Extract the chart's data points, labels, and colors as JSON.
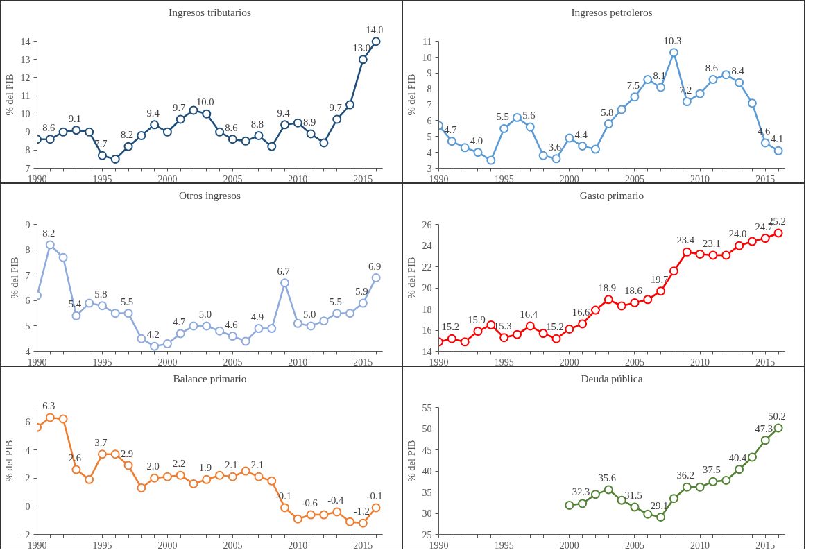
{
  "chart_data": [
    {
      "type": "line",
      "title": "Ingresos tributarios",
      "ylabel": "% del PIB",
      "color": "#1f4e79",
      "marker": "circle",
      "xlim": [
        1990,
        2016.5
      ],
      "xticks": [
        1990,
        {
          "value": 1991,
          "label": null
        },
        {
          "value": 1992,
          "label": null
        },
        {
          "value": 1993,
          "label": null
        },
        {
          "value": 1994,
          "label": null
        },
        1995,
        {
          "value": 1996,
          "label": null
        },
        {
          "value": 1997,
          "label": null
        },
        {
          "value": 1998,
          "label": null
        },
        {
          "value": 1999,
          "label": null
        },
        2000,
        {
          "value": 2001,
          "label": null
        },
        {
          "value": 2002,
          "label": null
        },
        {
          "value": 2003,
          "label": null
        },
        {
          "value": 2004,
          "label": null
        },
        2005,
        {
          "value": 2006,
          "label": null
        },
        {
          "value": 2007,
          "label": null
        },
        {
          "value": 2008,
          "label": null
        },
        {
          "value": 2009,
          "label": null
        },
        2010,
        {
          "value": 2011,
          "label": null
        },
        {
          "value": 2012,
          "label": null
        },
        {
          "value": 2013,
          "label": null
        },
        {
          "value": 2014,
          "label": null
        },
        2015,
        {
          "value": 2016,
          "label": null
        }
      ],
      "ylim": [
        7,
        14
      ],
      "yticks": [
        7,
        8,
        9,
        10,
        11,
        12,
        13,
        14
      ],
      "x": [
        1990,
        1991,
        1992,
        1993,
        1994,
        1995,
        1996,
        1997,
        1998,
        1999,
        2000,
        2001,
        2002,
        2003,
        2004,
        2005,
        2006,
        2007,
        2008,
        2009,
        2010,
        2011,
        2012,
        2013,
        2014,
        2015,
        2016
      ],
      "values": [
        8.6,
        8.6,
        9.0,
        9.1,
        9.0,
        7.7,
        7.5,
        8.2,
        8.8,
        9.4,
        9.0,
        9.7,
        10.2,
        10.0,
        9.0,
        8.6,
        8.5,
        8.8,
        8.2,
        9.4,
        9.5,
        8.9,
        8.4,
        9.7,
        10.5,
        13.0,
        14.0
      ],
      "value_labels": [
        null,
        "8.6",
        null,
        "9.1",
        null,
        "7.7",
        null,
        "8.2",
        null,
        "9.4",
        null,
        "9.7",
        null,
        "10.0",
        null,
        "8.6",
        null,
        "8.8",
        null,
        "9.4",
        null,
        "8.9",
        null,
        "9.7",
        null,
        "13.0",
        "14.0"
      ]
    },
    {
      "type": "line",
      "title": "Ingresos petroleros",
      "ylabel": "% del PIB",
      "color": "#5b9bd5",
      "marker": "circle",
      "xlim": [
        1990,
        2016.5
      ],
      "xticks": [
        1990,
        {
          "value": 1991,
          "label": null
        },
        {
          "value": 1992,
          "label": null
        },
        {
          "value": 1993,
          "label": null
        },
        {
          "value": 1994,
          "label": null
        },
        1995,
        {
          "value": 1996,
          "label": null
        },
        {
          "value": 1997,
          "label": null
        },
        {
          "value": 1998,
          "label": null
        },
        {
          "value": 1999,
          "label": null
        },
        2000,
        {
          "value": 2001,
          "label": null
        },
        {
          "value": 2002,
          "label": null
        },
        {
          "value": 2003,
          "label": null
        },
        {
          "value": 2004,
          "label": null
        },
        2005,
        {
          "value": 2006,
          "label": null
        },
        {
          "value": 2007,
          "label": null
        },
        {
          "value": 2008,
          "label": null
        },
        {
          "value": 2009,
          "label": null
        },
        2010,
        {
          "value": 2011,
          "label": null
        },
        {
          "value": 2012,
          "label": null
        },
        {
          "value": 2013,
          "label": null
        },
        {
          "value": 2014,
          "label": null
        },
        2015,
        {
          "value": 2016,
          "label": null
        }
      ],
      "ylim": [
        3,
        11
      ],
      "yticks": [
        3,
        4,
        5,
        6,
        7,
        8,
        9,
        10,
        11
      ],
      "x": [
        1990,
        1991,
        1992,
        1993,
        1994,
        1995,
        1996,
        1997,
        1998,
        1999,
        2000,
        2001,
        2002,
        2003,
        2004,
        2005,
        2006,
        2007,
        2008,
        2009,
        2010,
        2011,
        2012,
        2013,
        2014,
        2015,
        2016
      ],
      "values": [
        5.7,
        4.7,
        4.3,
        4.0,
        3.5,
        5.5,
        6.2,
        5.6,
        3.8,
        3.6,
        4.9,
        4.4,
        4.2,
        5.8,
        6.7,
        7.5,
        8.6,
        8.1,
        10.3,
        7.2,
        7.7,
        8.6,
        8.9,
        8.4,
        7.1,
        4.6,
        4.1
      ],
      "value_labels": [
        null,
        "4.7",
        null,
        "4.0",
        null,
        "5.5",
        null,
        "5.6",
        null,
        "3.6",
        null,
        "4.4",
        null,
        "5.8",
        null,
        "7.5",
        null,
        "8.1",
        "10.3",
        "7.2",
        null,
        "8.6",
        null,
        "8.4",
        null,
        "4.6",
        "4.1"
      ]
    },
    {
      "type": "line",
      "title": "Otros ingresos",
      "ylabel": "% del PIB",
      "color": "#8faadc",
      "marker": "circle",
      "xlim": [
        1990,
        2016.5
      ],
      "xticks": [
        1990,
        {
          "value": 1991,
          "label": null
        },
        {
          "value": 1992,
          "label": null
        },
        {
          "value": 1993,
          "label": null
        },
        {
          "value": 1994,
          "label": null
        },
        1995,
        {
          "value": 1996,
          "label": null
        },
        {
          "value": 1997,
          "label": null
        },
        {
          "value": 1998,
          "label": null
        },
        {
          "value": 1999,
          "label": null
        },
        2000,
        {
          "value": 2001,
          "label": null
        },
        {
          "value": 2002,
          "label": null
        },
        {
          "value": 2003,
          "label": null
        },
        {
          "value": 2004,
          "label": null
        },
        2005,
        {
          "value": 2006,
          "label": null
        },
        {
          "value": 2007,
          "label": null
        },
        {
          "value": 2008,
          "label": null
        },
        {
          "value": 2009,
          "label": null
        },
        2010,
        {
          "value": 2011,
          "label": null
        },
        {
          "value": 2012,
          "label": null
        },
        {
          "value": 2013,
          "label": null
        },
        {
          "value": 2014,
          "label": null
        },
        2015,
        {
          "value": 2016,
          "label": null
        }
      ],
      "ylim": [
        4,
        9
      ],
      "yticks": [
        4,
        5,
        6,
        7,
        8,
        9
      ],
      "x": [
        1990,
        1991,
        1992,
        1993,
        1994,
        1995,
        1996,
        1997,
        1998,
        1999,
        2000,
        2001,
        2002,
        2003,
        2004,
        2005,
        2006,
        2007,
        2008,
        2009,
        2010,
        2011,
        2012,
        2013,
        2014,
        2015,
        2016
      ],
      "values": [
        6.2,
        8.2,
        7.7,
        5.4,
        5.9,
        5.8,
        5.5,
        5.5,
        4.5,
        4.2,
        4.3,
        4.7,
        5.0,
        5.0,
        4.8,
        4.6,
        4.4,
        4.9,
        4.9,
        6.7,
        5.1,
        5.0,
        5.2,
        5.5,
        5.5,
        5.9,
        6.9
      ],
      "value_labels": [
        null,
        "8.2",
        null,
        "5.4",
        null,
        "5.8",
        null,
        "5.5",
        null,
        "4.2",
        null,
        "4.7",
        null,
        "5.0",
        null,
        "4.6",
        null,
        "4.9",
        null,
        "6.7",
        null,
        "5.0",
        null,
        "5.5",
        null,
        "5.9",
        "6.9"
      ]
    },
    {
      "type": "line",
      "title": "Gasto primario",
      "ylabel": "% del PIB",
      "color": "#ff0000",
      "marker": "circle",
      "xlim": [
        1990,
        2016.5
      ],
      "xticks": [
        1990,
        {
          "value": 1991,
          "label": null
        },
        {
          "value": 1992,
          "label": null
        },
        {
          "value": 1993,
          "label": null
        },
        {
          "value": 1994,
          "label": null
        },
        1995,
        {
          "value": 1996,
          "label": null
        },
        {
          "value": 1997,
          "label": null
        },
        {
          "value": 1998,
          "label": null
        },
        {
          "value": 1999,
          "label": null
        },
        2000,
        {
          "value": 2001,
          "label": null
        },
        {
          "value": 2002,
          "label": null
        },
        {
          "value": 2003,
          "label": null
        },
        {
          "value": 2004,
          "label": null
        },
        2005,
        {
          "value": 2006,
          "label": null
        },
        {
          "value": 2007,
          "label": null
        },
        {
          "value": 2008,
          "label": null
        },
        {
          "value": 2009,
          "label": null
        },
        2010,
        {
          "value": 2011,
          "label": null
        },
        {
          "value": 2012,
          "label": null
        },
        {
          "value": 2013,
          "label": null
        },
        {
          "value": 2014,
          "label": null
        },
        2015,
        {
          "value": 2016,
          "label": null
        }
      ],
      "ylim": [
        14,
        26
      ],
      "yticks": [
        14,
        16,
        18,
        20,
        22,
        24,
        26
      ],
      "x": [
        1990,
        1991,
        1992,
        1993,
        1994,
        1995,
        1996,
        1997,
        1998,
        1999,
        2000,
        2001,
        2002,
        2003,
        2004,
        2005,
        2006,
        2007,
        2008,
        2009,
        2010,
        2011,
        2012,
        2013,
        2014,
        2015,
        2016
      ],
      "values": [
        14.9,
        15.2,
        14.9,
        15.9,
        16.5,
        15.3,
        15.6,
        16.4,
        15.7,
        15.2,
        16.1,
        16.6,
        17.9,
        18.9,
        18.3,
        18.6,
        18.9,
        19.7,
        21.6,
        23.4,
        23.2,
        23.1,
        23.1,
        24.0,
        24.4,
        24.7,
        25.2
      ],
      "value_labels": [
        null,
        "15.2",
        null,
        "15.9",
        null,
        "15.3",
        null,
        "16.4",
        null,
        "15.2",
        null,
        "16.6",
        null,
        "18.9",
        null,
        "18.6",
        null,
        "19.7",
        null,
        "23.4",
        null,
        "23.1",
        null,
        "24.0",
        null,
        "24.7",
        "25.2"
      ]
    },
    {
      "type": "line",
      "title": "Balance primario",
      "ylabel": "% del PIB",
      "color": "#ed7d31",
      "marker": "circle",
      "xlim": [
        1990,
        2016.5
      ],
      "xticks": [
        1990,
        {
          "value": 1991,
          "label": null
        },
        {
          "value": 1992,
          "label": null
        },
        {
          "value": 1993,
          "label": null
        },
        {
          "value": 1994,
          "label": null
        },
        1995,
        {
          "value": 1996,
          "label": null
        },
        {
          "value": 1997,
          "label": null
        },
        {
          "value": 1998,
          "label": null
        },
        {
          "value": 1999,
          "label": null
        },
        2000,
        {
          "value": 2001,
          "label": null
        },
        {
          "value": 2002,
          "label": null
        },
        {
          "value": 2003,
          "label": null
        },
        {
          "value": 2004,
          "label": null
        },
        2005,
        {
          "value": 2006,
          "label": null
        },
        {
          "value": 2007,
          "label": null
        },
        {
          "value": 2008,
          "label": null
        },
        {
          "value": 2009,
          "label": null
        },
        2010,
        {
          "value": 2011,
          "label": null
        },
        {
          "value": 2012,
          "label": null
        },
        {
          "value": 2013,
          "label": null
        },
        {
          "value": 2014,
          "label": null
        },
        2015,
        {
          "value": 2016,
          "label": null
        }
      ],
      "ylim": [
        -2,
        7
      ],
      "yticks": [
        -2,
        0,
        2,
        4,
        6
      ],
      "x": [
        1990,
        1991,
        1992,
        1993,
        1994,
        1995,
        1996,
        1997,
        1998,
        1999,
        2000,
        2001,
        2002,
        2003,
        2004,
        2005,
        2006,
        2007,
        2008,
        2009,
        2010,
        2011,
        2012,
        2013,
        2014,
        2015,
        2016
      ],
      "values": [
        5.6,
        6.3,
        6.2,
        2.6,
        1.9,
        3.7,
        3.7,
        2.9,
        1.3,
        2.0,
        2.1,
        2.2,
        1.6,
        1.9,
        2.2,
        2.1,
        2.5,
        2.1,
        1.8,
        -0.1,
        -0.9,
        -0.6,
        -0.6,
        -0.4,
        -1.1,
        -1.2,
        -0.1
      ],
      "value_labels": [
        null,
        "6.3",
        null,
        "2.6",
        null,
        "3.7",
        null,
        "2.9",
        null,
        "2.0",
        null,
        "2.2",
        null,
        "1.9",
        null,
        "2.1",
        null,
        "2.1",
        null,
        "-0.1",
        null,
        "-0.6",
        null,
        "-0.4",
        null,
        "-1.2",
        "-0.1"
      ]
    },
    {
      "type": "line",
      "title": "Deuda pública",
      "ylabel": "% del PIB",
      "color": "#548235",
      "marker": "circle",
      "xlim": [
        1990,
        2016.5
      ],
      "xticks": [
        1990,
        {
          "value": 1991,
          "label": null
        },
        {
          "value": 1992,
          "label": null
        },
        {
          "value": 1993,
          "label": null
        },
        {
          "value": 1994,
          "label": null
        },
        1995,
        {
          "value": 1996,
          "label": null
        },
        {
          "value": 1997,
          "label": null
        },
        {
          "value": 1998,
          "label": null
        },
        {
          "value": 1999,
          "label": null
        },
        2000,
        {
          "value": 2001,
          "label": null
        },
        {
          "value": 2002,
          "label": null
        },
        {
          "value": 2003,
          "label": null
        },
        {
          "value": 2004,
          "label": null
        },
        2005,
        {
          "value": 2006,
          "label": null
        },
        {
          "value": 2007,
          "label": null
        },
        {
          "value": 2008,
          "label": null
        },
        {
          "value": 2009,
          "label": null
        },
        2010,
        {
          "value": 2011,
          "label": null
        },
        {
          "value": 2012,
          "label": null
        },
        {
          "value": 2013,
          "label": null
        },
        {
          "value": 2014,
          "label": null
        },
        2015,
        {
          "value": 2016,
          "label": null
        }
      ],
      "ylim": [
        25,
        55
      ],
      "yticks": [
        25,
        30,
        35,
        40,
        45,
        50,
        55
      ],
      "x": [
        2000,
        2001,
        2002,
        2003,
        2004,
        2005,
        2006,
        2007,
        2008,
        2009,
        2010,
        2011,
        2012,
        2013,
        2014,
        2015,
        2016
      ],
      "values": [
        31.9,
        32.3,
        34.5,
        35.6,
        33.1,
        31.5,
        29.8,
        29.1,
        33.5,
        36.2,
        36.2,
        37.5,
        37.8,
        40.4,
        43.3,
        47.3,
        50.2
      ],
      "value_labels": [
        null,
        "32.3",
        null,
        "35.6",
        null,
        "31.5",
        null,
        "29.1",
        null,
        "36.2",
        null,
        "37.5",
        null,
        "40.4",
        null,
        "47.3",
        "50.2"
      ]
    }
  ]
}
